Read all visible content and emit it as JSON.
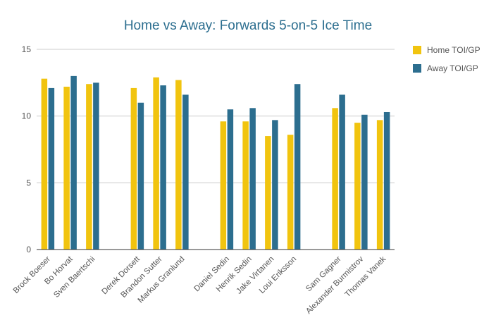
{
  "chart_data": {
    "type": "bar",
    "title": "Home vs Away: Forwards 5-on-5 Ice Time",
    "xlabel": "",
    "ylabel": "",
    "ylim": [
      0,
      15
    ],
    "yticks": [
      0,
      5,
      10,
      15
    ],
    "grid": true,
    "legend_position": "right",
    "categories": [
      "Brock Boeser",
      "Bo Horvat",
      "Sven Baertschi",
      "Derek Dorsett",
      "Brandon Sutter",
      "Markus Granlund",
      "Daniel Sedin",
      "Henrik Sedin",
      "Jake Virtanen",
      "Loui Eriksson",
      "Sam Gagner",
      "Alexander Burmistrov",
      "Thomas Vanek"
    ],
    "groups": [
      3,
      3,
      4,
      3
    ],
    "series": [
      {
        "name": "Home TOI/GP",
        "color": "#f1c40f",
        "values": [
          12.8,
          12.2,
          12.4,
          12.1,
          12.9,
          12.7,
          9.6,
          9.6,
          8.5,
          8.6,
          10.6,
          9.5,
          9.7
        ]
      },
      {
        "name": "Away TOI/GP",
        "color": "#2c6e8f",
        "values": [
          12.1,
          13.0,
          12.5,
          11.0,
          12.3,
          11.6,
          10.5,
          10.6,
          9.7,
          12.4,
          11.6,
          10.1,
          10.3
        ]
      }
    ],
    "title_color": "#2c6e8f",
    "axis_color": "#333333",
    "grid_color": "#cccccc"
  }
}
